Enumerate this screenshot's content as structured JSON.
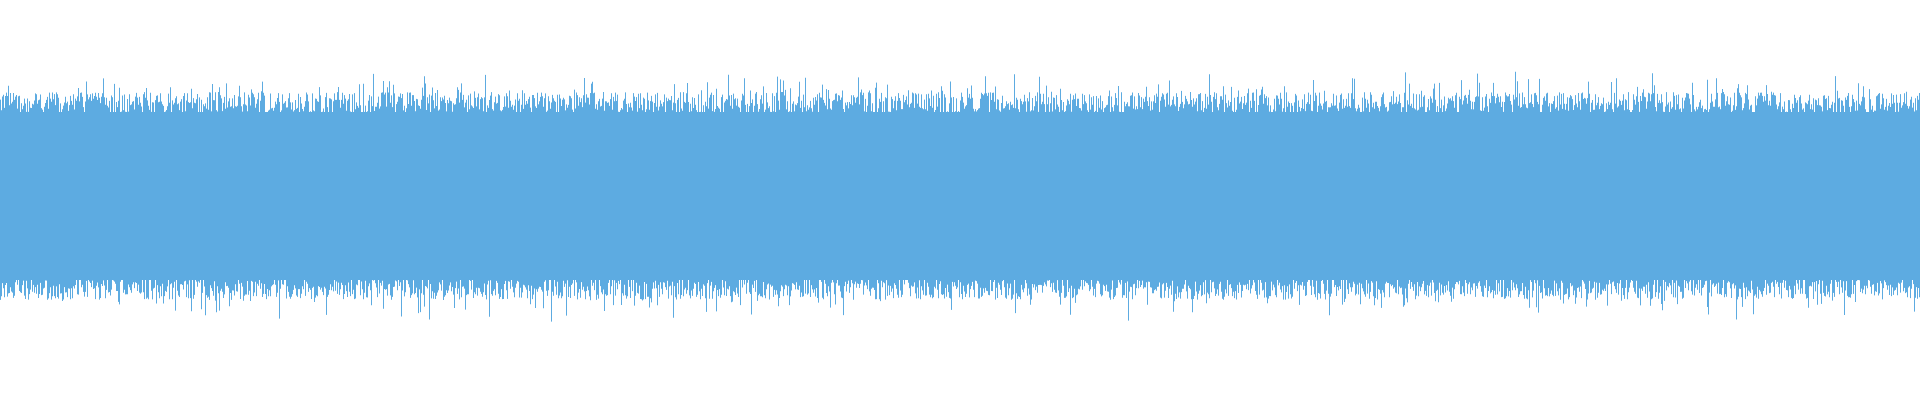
{
  "waveform": {
    "color": "#5dabe1"
  }
}
